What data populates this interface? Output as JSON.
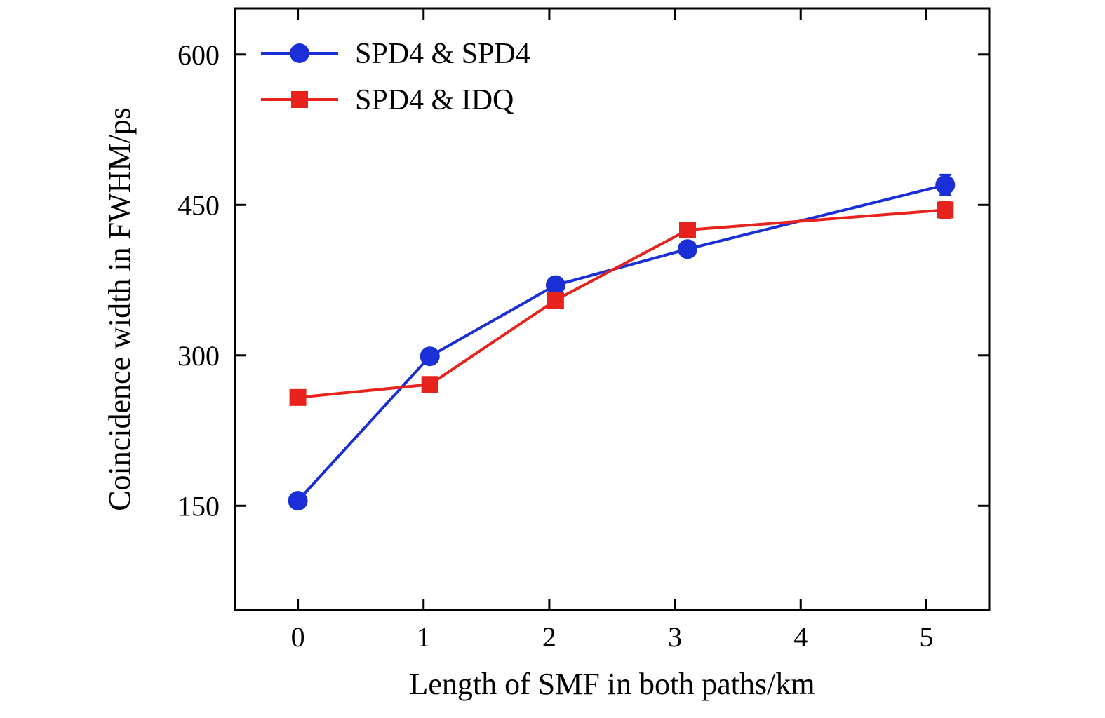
{
  "chart_data": {
    "type": "line",
    "title": "",
    "xlabel": "Length of SMF in both paths/km",
    "ylabel": "Coincidence width in FWHM/ps",
    "xlim": [
      -0.5,
      5.5
    ],
    "ylim": [
      46,
      646
    ],
    "xticks": [
      0,
      1,
      2,
      3,
      4,
      5
    ],
    "yticks": [
      150,
      300,
      450,
      600
    ],
    "grid": false,
    "legend_position": "top-left",
    "series": [
      {
        "name": "SPD4 & SPD4",
        "color": "#1b2fd6",
        "marker": "circle",
        "x": [
          0,
          1.05,
          2.05,
          3.1,
          5.15
        ],
        "y": [
          155,
          299,
          370,
          406,
          470
        ],
        "yerr": [
          0,
          0,
          0,
          0,
          10
        ]
      },
      {
        "name": "SPD4 & IDQ",
        "color": "#e8231d",
        "marker": "square",
        "x": [
          0,
          1.05,
          2.05,
          3.1,
          5.15
        ],
        "y": [
          258,
          271,
          355,
          425,
          445
        ],
        "yerr": [
          0,
          0,
          0,
          0,
          8
        ]
      }
    ]
  }
}
